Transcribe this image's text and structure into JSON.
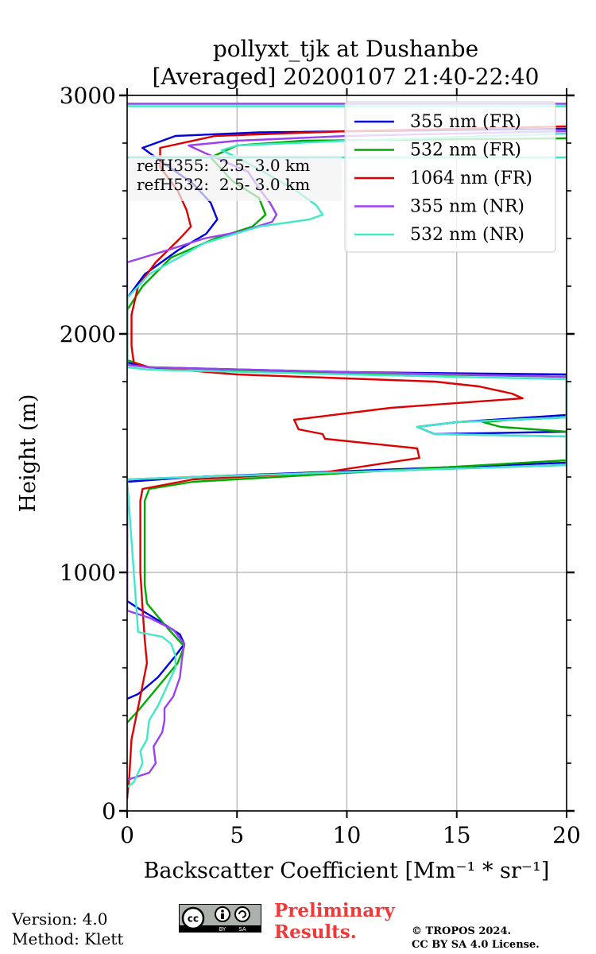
{
  "chart_data": {
    "type": "line",
    "title": "pollyxt_tjk at Dushanbe",
    "subtitle": "[Averaged] 20200107 21:40-22:40",
    "xlabel": "Backscatter Coefficient [Mm⁻¹ * sr⁻¹]",
    "ylabel": "Height (m)",
    "xlim": [
      0,
      20
    ],
    "ylim": [
      0,
      3000
    ],
    "xticks": [
      0,
      5,
      10,
      15,
      20
    ],
    "yticks": [
      0,
      1000,
      2000,
      3000
    ],
    "grid": true,
    "legend_position": "top-right",
    "annotations": [
      "refH355:  2.5- 3.0 km",
      "refH532:  2.5- 3.0 km"
    ],
    "series": [
      {
        "name": "355 nm (FR)",
        "color": "#0000e0",
        "points": [
          [
            0,
            470
          ],
          [
            0.5,
            490
          ],
          [
            1.4,
            560
          ],
          [
            2.2,
            650
          ],
          [
            2.6,
            700
          ],
          [
            2.4,
            740
          ],
          [
            1.4,
            800
          ],
          [
            0.5,
            850
          ],
          [
            0,
            880
          ],
          [
            0,
            1380
          ],
          [
            3,
            1400
          ],
          [
            20,
            1460
          ],
          [
            20,
            1590
          ],
          [
            14,
            1580
          ],
          [
            13.2,
            1610
          ],
          [
            15,
            1630
          ],
          [
            20,
            1660
          ],
          [
            20,
            1830
          ],
          [
            10,
            1840
          ],
          [
            1,
            1860
          ],
          [
            0,
            1880
          ],
          [
            0,
            2150
          ],
          [
            0.8,
            2250
          ],
          [
            2.3,
            2350
          ],
          [
            3.6,
            2420
          ],
          [
            4.1,
            2480
          ],
          [
            3.8,
            2550
          ],
          [
            3,
            2630
          ],
          [
            1.6,
            2720
          ],
          [
            0.7,
            2780
          ],
          [
            2.2,
            2830
          ],
          [
            6,
            2845
          ],
          [
            20,
            2860
          ]
        ]
      },
      {
        "name": "532 nm (FR)",
        "color": "#00aa00",
        "points": [
          [
            0,
            370
          ],
          [
            0.5,
            420
          ],
          [
            1.4,
            520
          ],
          [
            2.3,
            620
          ],
          [
            2.6,
            690
          ],
          [
            1.9,
            760
          ],
          [
            0.9,
            870
          ],
          [
            0.8,
            950
          ],
          [
            0.8,
            1300
          ],
          [
            1,
            1350
          ],
          [
            3,
            1380
          ],
          [
            20,
            1470
          ],
          [
            20,
            1650
          ],
          [
            17.5,
            1640
          ],
          [
            16.2,
            1630
          ],
          [
            17,
            1610
          ],
          [
            20,
            1590
          ],
          [
            20,
            1820
          ],
          [
            8,
            1840
          ],
          [
            1,
            1860
          ],
          [
            0,
            1890
          ],
          [
            0,
            2100
          ],
          [
            0.7,
            2200
          ],
          [
            2,
            2320
          ],
          [
            4,
            2400
          ],
          [
            5.7,
            2450
          ],
          [
            6.3,
            2500
          ],
          [
            6,
            2570
          ],
          [
            4.8,
            2640
          ],
          [
            3.8,
            2740
          ],
          [
            5,
            2790
          ],
          [
            8,
            2810
          ],
          [
            20,
            2820
          ]
        ]
      },
      {
        "name": "1064 nm (FR)",
        "color": "#dd0000",
        "points": [
          [
            0,
            50
          ],
          [
            0.1,
            150
          ],
          [
            0.2,
            300
          ],
          [
            0.6,
            480
          ],
          [
            0.9,
            620
          ],
          [
            0.8,
            720
          ],
          [
            0.7,
            850
          ],
          [
            0.6,
            1000
          ],
          [
            0.6,
            1300
          ],
          [
            0.7,
            1350
          ],
          [
            3,
            1390
          ],
          [
            9,
            1420
          ],
          [
            13.3,
            1480
          ],
          [
            13.2,
            1520
          ],
          [
            9,
            1560
          ],
          [
            8.9,
            1580
          ],
          [
            7.8,
            1600
          ],
          [
            7.6,
            1640
          ],
          [
            12,
            1690
          ],
          [
            18,
            1730
          ],
          [
            17.5,
            1750
          ],
          [
            16,
            1780
          ],
          [
            14,
            1800
          ],
          [
            5,
            1830
          ],
          [
            1,
            1860
          ],
          [
            0.3,
            1880
          ],
          [
            0.2,
            1950
          ],
          [
            0.2,
            2080
          ],
          [
            0.5,
            2200
          ],
          [
            1.3,
            2300
          ],
          [
            2.4,
            2400
          ],
          [
            2.9,
            2450
          ],
          [
            2.7,
            2520
          ],
          [
            2.3,
            2600
          ],
          [
            1.5,
            2700
          ],
          [
            1.5,
            2780
          ],
          [
            4,
            2830
          ],
          [
            10,
            2850
          ],
          [
            20,
            2870
          ]
        ]
      },
      {
        "name": "355 nm (NR)",
        "color": "#9b40f2",
        "points": [
          [
            0,
            130
          ],
          [
            1,
            160
          ],
          [
            1.3,
            200
          ],
          [
            1.2,
            270
          ],
          [
            1.6,
            330
          ],
          [
            1.7,
            380
          ],
          [
            1.7,
            430
          ],
          [
            2.1,
            480
          ],
          [
            2.4,
            560
          ],
          [
            2.5,
            640
          ],
          [
            2.6,
            700
          ],
          [
            2.1,
            760
          ],
          [
            1,
            810
          ],
          [
            0,
            840
          ],
          [
            0,
            1390
          ],
          [
            3,
            1400
          ],
          [
            20,
            1450
          ],
          [
            20,
            1570
          ],
          [
            14,
            1580
          ],
          [
            13.2,
            1610
          ],
          [
            15,
            1630
          ],
          [
            20,
            1650
          ],
          [
            20,
            1820
          ],
          [
            10,
            1840
          ],
          [
            1,
            1860
          ],
          [
            0,
            1870
          ],
          [
            0,
            2300
          ],
          [
            1.8,
            2350
          ],
          [
            3.5,
            2400
          ],
          [
            5.2,
            2430
          ],
          [
            6.6,
            2470
          ],
          [
            6.8,
            2500
          ],
          [
            6.5,
            2550
          ],
          [
            6,
            2610
          ],
          [
            5.5,
            2680
          ],
          [
            3.5,
            2760
          ],
          [
            2.8,
            2790
          ],
          [
            5,
            2810
          ],
          [
            10,
            2830
          ],
          [
            20,
            2850
          ]
        ]
      },
      {
        "name": "532 nm (NR)",
        "color": "#40e8c8",
        "points": [
          [
            0,
            100
          ],
          [
            0.3,
            120
          ],
          [
            0.7,
            200
          ],
          [
            0.6,
            250
          ],
          [
            0.9,
            300
          ],
          [
            1,
            380
          ],
          [
            1.4,
            440
          ],
          [
            1.8,
            520
          ],
          [
            2.2,
            600
          ],
          [
            2.2,
            650
          ],
          [
            2,
            700
          ],
          [
            1.6,
            730
          ],
          [
            0.5,
            750
          ],
          [
            0,
            1390
          ],
          [
            3,
            1400
          ],
          [
            20,
            1450
          ],
          [
            20,
            1570
          ],
          [
            14,
            1580
          ],
          [
            13.2,
            1610
          ],
          [
            15,
            1630
          ],
          [
            20,
            1650
          ],
          [
            20,
            1810
          ],
          [
            10,
            1830
          ],
          [
            1,
            1850
          ],
          [
            0,
            1860
          ],
          [
            0,
            2150
          ],
          [
            1,
            2250
          ],
          [
            3.5,
            2380
          ],
          [
            6,
            2450
          ],
          [
            8.3,
            2480
          ],
          [
            8.9,
            2500
          ],
          [
            8.6,
            2540
          ],
          [
            7.7,
            2600
          ],
          [
            6.2,
            2680
          ],
          [
            5,
            2740
          ],
          [
            4.3,
            2770
          ],
          [
            5,
            2790
          ],
          [
            10,
            2810
          ],
          [
            20,
            2840
          ]
        ]
      }
    ],
    "horizontal_lines": [
      {
        "series": "355 nm (NR)",
        "y": 2965
      },
      {
        "series": "532 nm (NR)",
        "y": 2955
      },
      {
        "series": "532 nm (NR)",
        "y": 2740
      }
    ]
  },
  "footer": {
    "version": "Version: 4.0",
    "method": "Method: Klett",
    "preliminary_line1": "Preliminary",
    "preliminary_line2": "Results.",
    "copyright_line1": "© TROPOS 2024.",
    "copyright_line2": "CC BY SA 4.0 License.",
    "license_badge": "cc-by-sa-badge"
  }
}
